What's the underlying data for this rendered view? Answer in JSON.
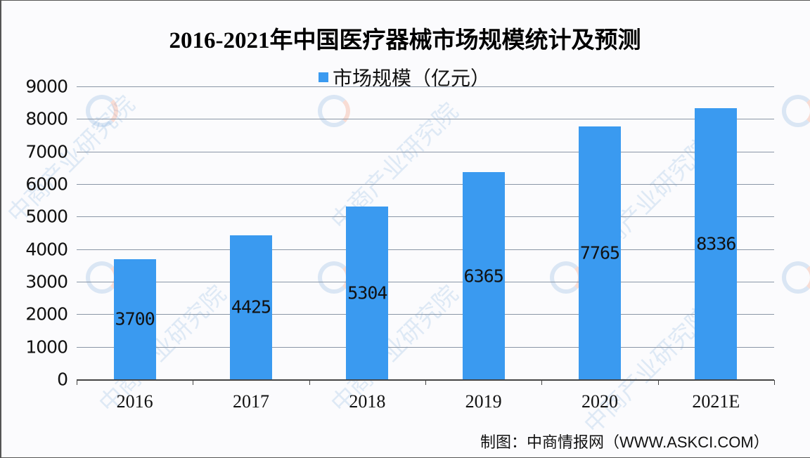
{
  "chart_data": {
    "type": "bar",
    "title": "2016-2021年中国医疗器械市场规模统计及预测",
    "categories": [
      "2016",
      "2017",
      "2018",
      "2019",
      "2020",
      "2021E"
    ],
    "series": [
      {
        "name": "市场规模（亿元）",
        "values": [
          3700,
          4425,
          5304,
          6365,
          7765,
          8336
        ],
        "color": "#3a9af0"
      }
    ],
    "xlabel": "",
    "ylabel": "",
    "ylim": [
      0,
      9000
    ],
    "yticks": [
      "0",
      "1000",
      "2000",
      "3000",
      "4000",
      "5000",
      "6000",
      "7000",
      "8000",
      "9000"
    ],
    "grid": true,
    "legend_position": "top",
    "data_labels": [
      "3700",
      "4425",
      "5304",
      "6365",
      "7765",
      "8336"
    ]
  },
  "header": {
    "title": "2016-2021年中国医疗器械市场规模统计及预测",
    "legend_label": "市场规模（亿元）"
  },
  "footer": {
    "source": "制图：中商情报网（WWW.ASKCI.COM）"
  },
  "watermark": {
    "text": "中商产业研究院"
  }
}
